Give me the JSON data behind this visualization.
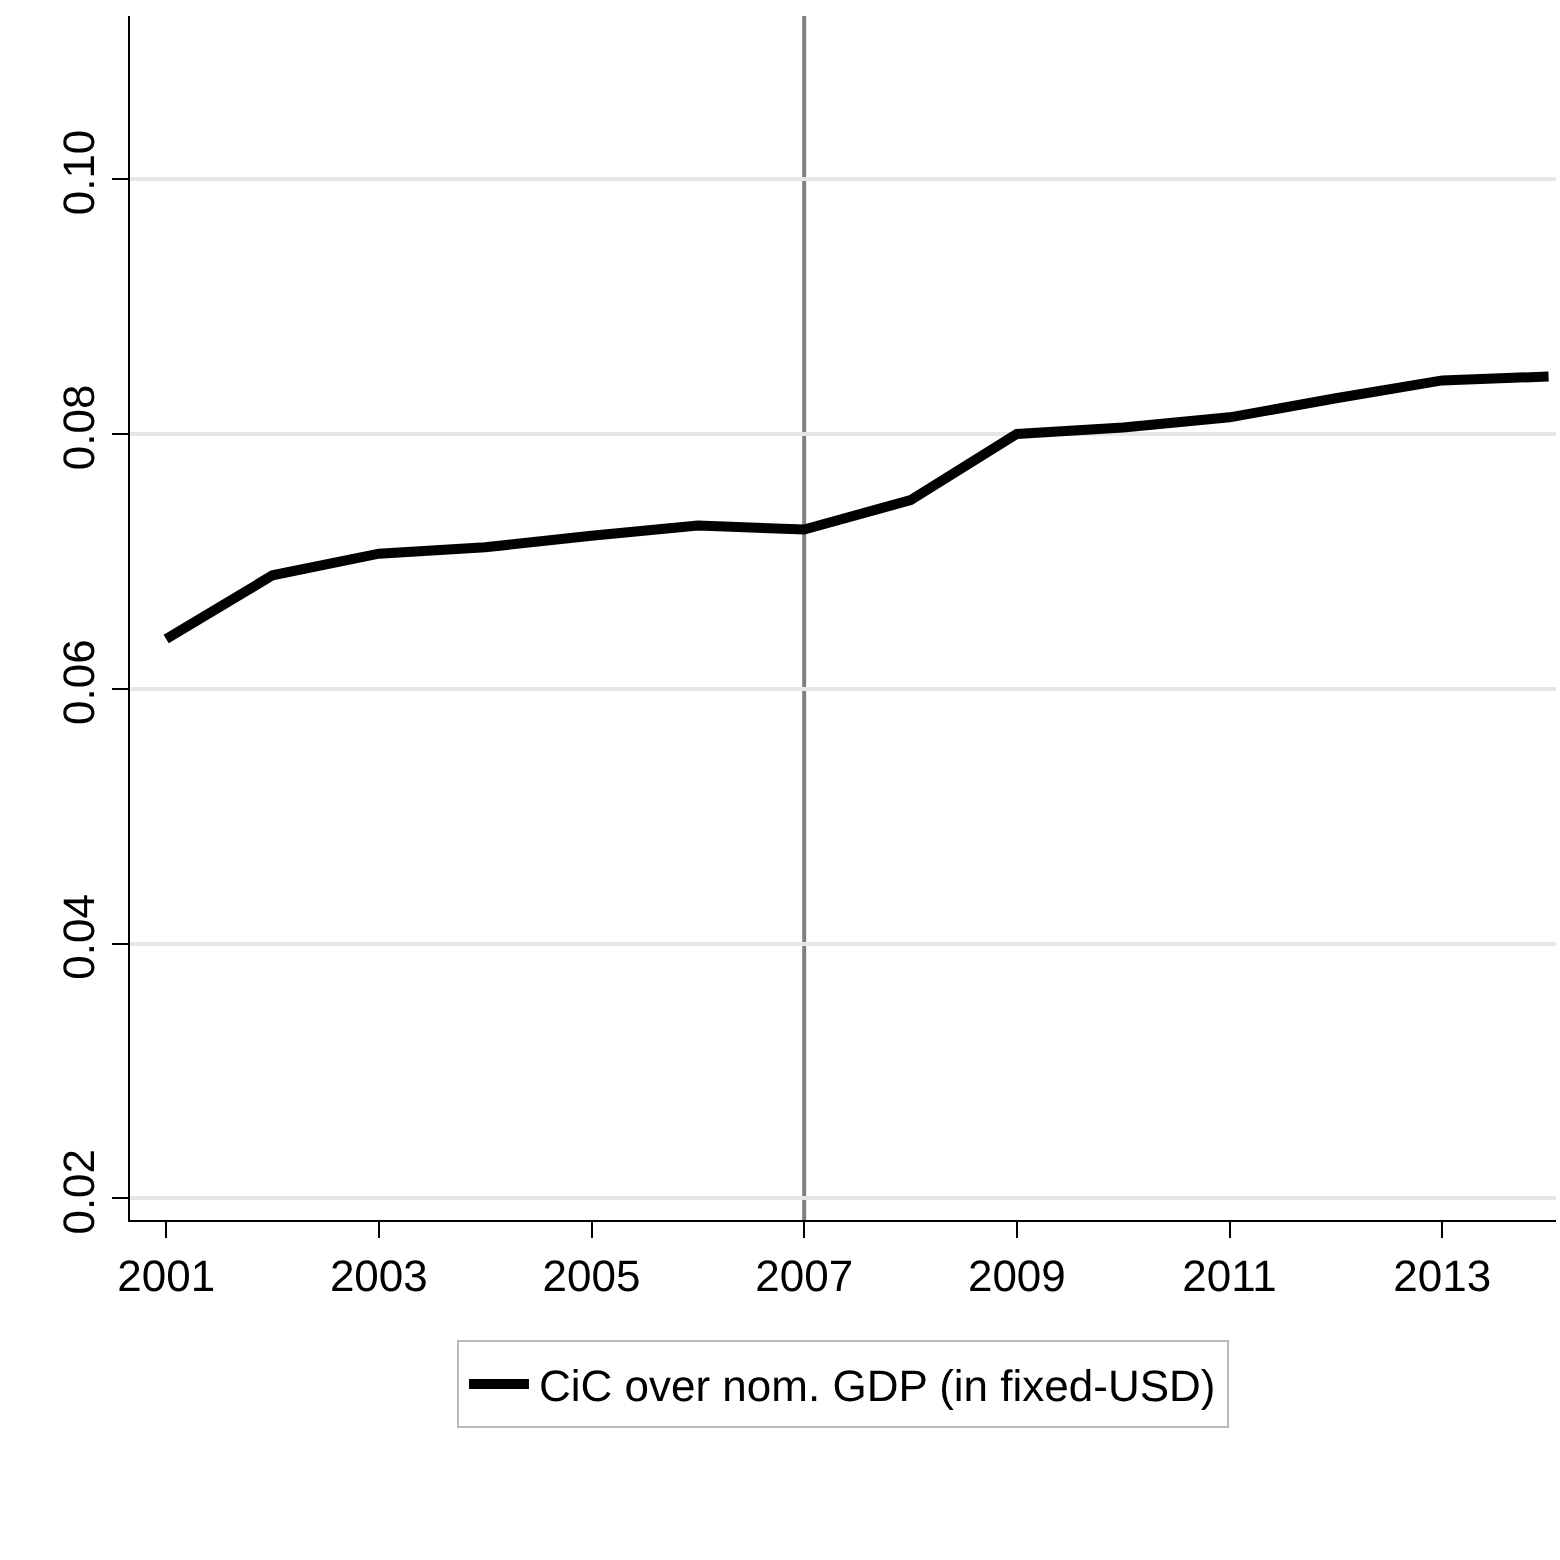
{
  "chart_data": {
    "type": "line",
    "x": [
      2001,
      2002,
      2003,
      2004,
      2005,
      2006,
      2007,
      2008,
      2009,
      2010,
      2011,
      2012,
      2013,
      2014
    ],
    "series": [
      {
        "name": "CiC over nom. GDP (in fixed-USD)",
        "color": "#000000",
        "values": [
          0.0639,
          0.0689,
          0.0706,
          0.0711,
          0.072,
          0.0728,
          0.0725,
          0.0748,
          0.08,
          0.0805,
          0.0813,
          0.0828,
          0.0842,
          0.0845
        ]
      }
    ],
    "xlim": [
      2000.66,
      2014.07
    ],
    "xticks": [
      2001,
      2003,
      2005,
      2007,
      2009,
      2011,
      2013
    ],
    "ylim": [
      0.0183,
      0.1128
    ],
    "yticks": [
      {
        "value": 0.02,
        "label": "0.02"
      },
      {
        "value": 0.04,
        "label": "0.04"
      },
      {
        "value": 0.06,
        "label": "0.06"
      },
      {
        "value": 0.08,
        "label": "0.08"
      },
      {
        "value": 0.1,
        "label": "0.10"
      }
    ],
    "ref_lines": [
      {
        "axis": "x",
        "value": 2007,
        "color": "#7f7f7f"
      }
    ],
    "grid": "y",
    "legend": "bottom",
    "line_style": "solid",
    "marker": "none"
  }
}
